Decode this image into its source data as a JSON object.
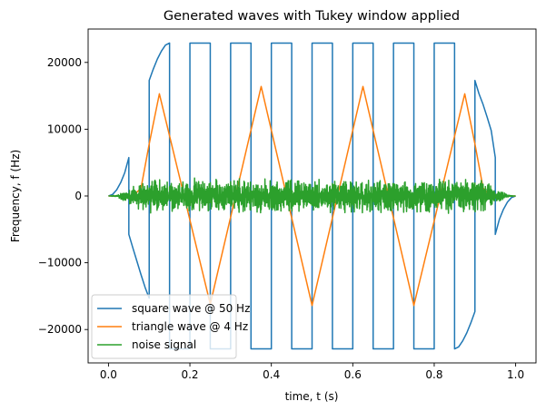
{
  "chart_data": {
    "type": "line",
    "title": "Generated waves with Tukey window applied",
    "xlabel": "time, t (s)",
    "ylabel": "Frequency, f (Hz)",
    "xlim": [
      -0.05,
      1.05
    ],
    "ylim": [
      -25000,
      25000
    ],
    "xticks": [
      0.0,
      0.2,
      0.4,
      0.6,
      0.8,
      1.0
    ],
    "xtick_labels": [
      "0.0",
      "0.2",
      "0.4",
      "0.6",
      "0.8",
      "1.0"
    ],
    "yticks": [
      -20000,
      -10000,
      0,
      10000,
      20000
    ],
    "ytick_labels": [
      "−20000",
      "−10000",
      "0",
      "10000",
      "20000"
    ],
    "grid": false,
    "legend_position": "lower-left",
    "series": [
      {
        "name": "square wave @ 50 Hz",
        "color": "#1f77b4",
        "x": [
          0.0,
          0.01,
          0.02,
          0.03,
          0.04,
          0.05,
          0.05,
          0.06,
          0.07,
          0.08,
          0.09,
          0.1,
          0.1,
          0.11,
          0.12,
          0.13,
          0.14,
          0.15,
          0.15,
          0.2,
          0.2,
          0.25,
          0.25,
          0.3,
          0.3,
          0.35,
          0.35,
          0.4,
          0.4,
          0.45,
          0.45,
          0.5,
          0.5,
          0.55,
          0.55,
          0.6,
          0.6,
          0.65,
          0.65,
          0.7,
          0.7,
          0.75,
          0.75,
          0.8,
          0.8,
          0.85,
          0.85,
          0.86,
          0.87,
          0.88,
          0.89,
          0.9,
          0.9,
          0.91,
          0.92,
          0.93,
          0.94,
          0.95,
          0.95,
          0.96,
          0.97,
          0.98,
          0.99,
          1.0
        ],
        "y": [
          0,
          230,
          900,
          2000,
          3500,
          5750,
          -5750,
          -7800,
          -9800,
          -11800,
          -13700,
          -15300,
          17300,
          19000,
          20500,
          21700,
          22600,
          22900,
          -22900,
          -22900,
          22900,
          22900,
          -22900,
          -22900,
          22900,
          22900,
          -22900,
          -22900,
          22900,
          22900,
          -22900,
          -22900,
          22900,
          22900,
          -22900,
          -22900,
          22900,
          22900,
          -22900,
          -22900,
          22900,
          22900,
          -22900,
          -22900,
          22900,
          22900,
          -22900,
          -22600,
          -21700,
          -20500,
          -19000,
          -17300,
          17300,
          15300,
          13700,
          11800,
          9800,
          5750,
          -5750,
          -3500,
          -2000,
          -900,
          -230,
          0
        ]
      },
      {
        "name": "triangle wave @ 4 Hz",
        "color": "#ff7f0e",
        "x": [
          0.0,
          0.02,
          0.04,
          0.06,
          0.08,
          0.1,
          0.125,
          0.25,
          0.375,
          0.5,
          0.625,
          0.75,
          0.875,
          0.9,
          0.92,
          0.94,
          0.96,
          0.98,
          1.0
        ],
        "y": [
          0,
          -10,
          -50,
          -60,
          1200,
          7800,
          15300,
          -16200,
          16400,
          -16400,
          16400,
          -16400,
          15300,
          7800,
          1200,
          -60,
          -50,
          -10,
          0
        ]
      },
      {
        "name": "noise signal",
        "color": "#2ca02c",
        "amplitude": 2800,
        "min": -3800,
        "max": 3200,
        "x_range": [
          0.0,
          1.0
        ]
      }
    ]
  }
}
